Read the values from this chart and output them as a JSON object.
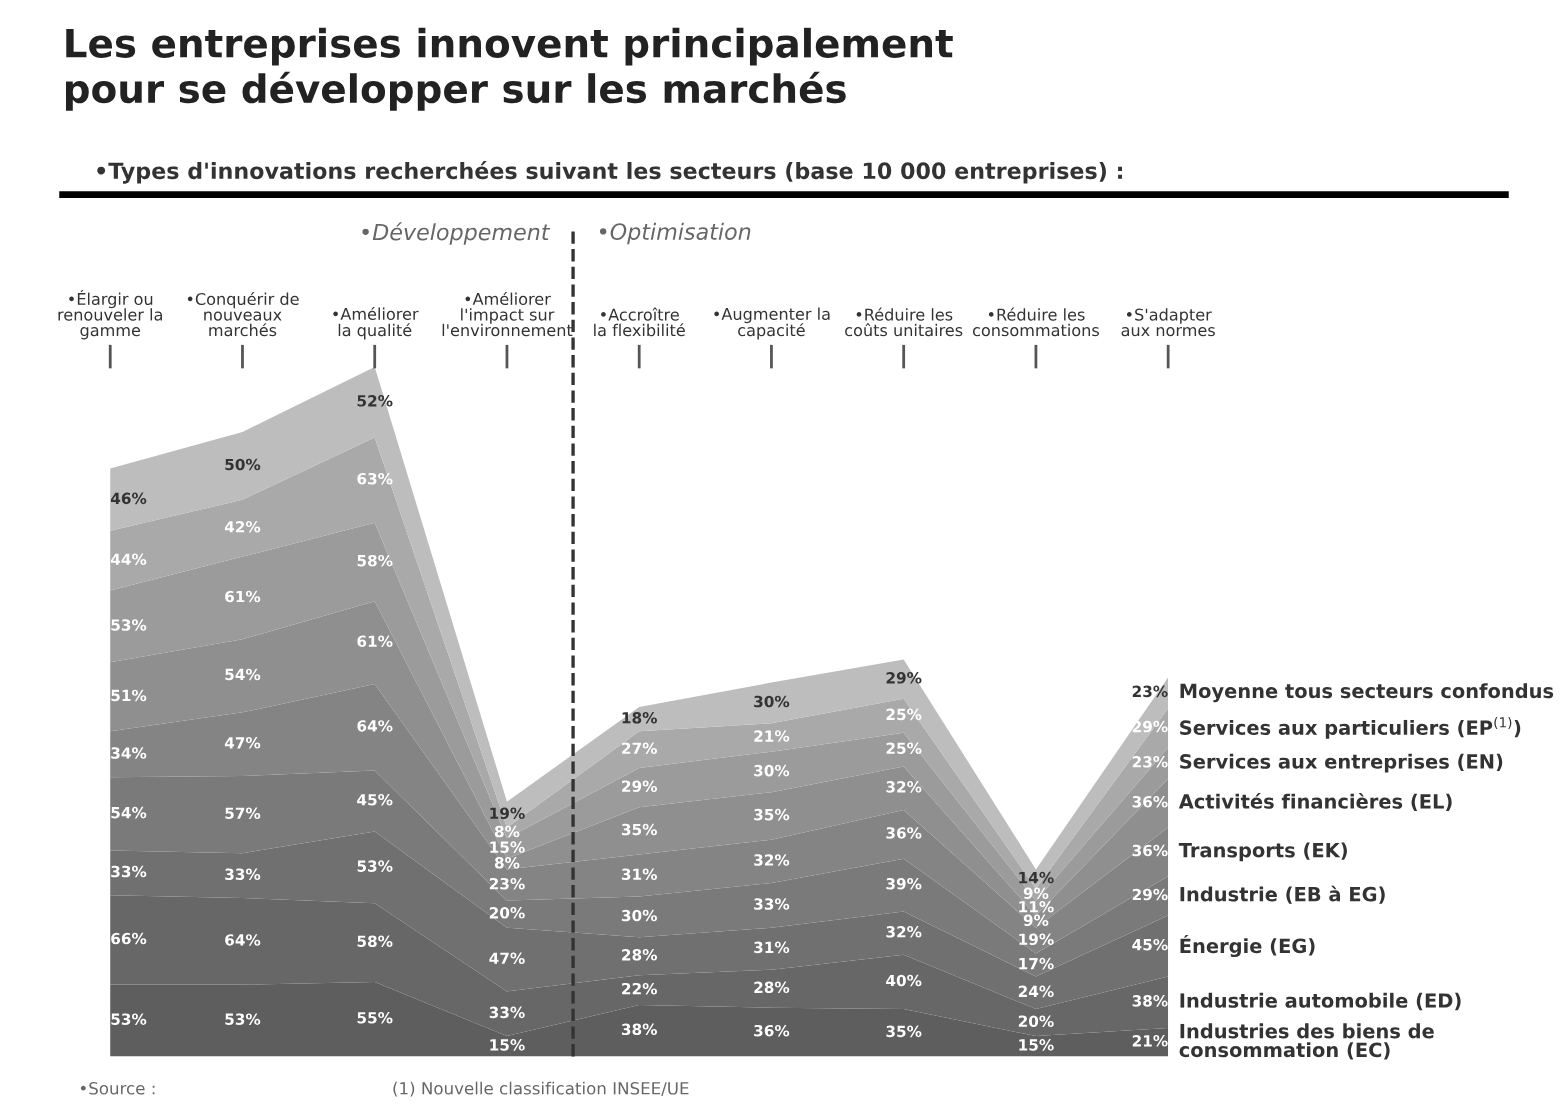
{
  "chart_data": {
    "type": "area",
    "stacked": true,
    "legend": false,
    "title": "Les entreprises innovent principalement\npour se développer sur les marchés",
    "subtitle": "•Types d'innovations recherchées suivant les secteurs (base 10 000 entreprises) :",
    "categories": [
      "•Élargir ou\nrenouveler la\ngamme",
      "•Conquérir de\nnouveaux\nmarchés",
      "•Améliorer\nla qualité",
      "•Améliorer\nl'impact sur\nl'environnement",
      "•Accroître\nla flexibilité",
      "•Augmenter la\ncapacité",
      "•Réduire les\ncoûts unitaires",
      "•Réduire les\nconsommations",
      "•S'adapter\naux normes"
    ],
    "series": [
      {
        "name": "Industries des biens de\nconsommation (EC)",
        "color": "#5e5e5e",
        "values": [
          53,
          53,
          55,
          15,
          38,
          36,
          35,
          15,
          21
        ],
        "value_labels": [
          "53%",
          "53%",
          "55%",
          "15%",
          "38%",
          "36%",
          "35%",
          "15%",
          "21%"
        ]
      },
      {
        "name": "Industrie automobile (ED)",
        "color": "#676767",
        "values": [
          66,
          64,
          58,
          33,
          22,
          28,
          40,
          20,
          38
        ],
        "value_labels": [
          "66%",
          "64%",
          "58%",
          "33%",
          "22%",
          "28%",
          "40%",
          "20%",
          "38%"
        ]
      },
      {
        "name": "Énergie (EG)",
        "color": "#707070",
        "values": [
          33,
          33,
          53,
          47,
          28,
          31,
          32,
          24,
          45
        ],
        "value_labels": [
          "33%",
          "33%",
          "53%",
          "47%",
          "28%",
          "31%",
          "32%",
          "24%",
          "45%"
        ]
      },
      {
        "name": "Industrie (EB à EG)",
        "color": "#7a7a7a",
        "values": [
          54,
          57,
          45,
          20,
          30,
          33,
          39,
          17,
          29
        ],
        "value_labels": [
          "54%",
          "57%",
          "45%",
          "20%",
          "30%",
          "33%",
          "39%",
          "17%",
          "29%"
        ]
      },
      {
        "name": "Transports (EK)",
        "color": "#848484",
        "values": [
          34,
          47,
          64,
          23,
          31,
          32,
          36,
          19,
          36
        ],
        "value_labels": [
          "34%",
          "47%",
          "64%",
          "23%",
          "31%",
          "32%",
          "36%",
          "19%",
          "36%"
        ]
      },
      {
        "name": "Activités financières (EL)",
        "color": "#8f8f8f",
        "values": [
          51,
          54,
          61,
          8,
          35,
          35,
          32,
          9,
          36
        ],
        "value_labels": [
          "51%",
          "54%",
          "61%",
          "8%",
          "35%",
          "35%",
          "32%",
          "9%",
          "36%"
        ]
      },
      {
        "name": "Services aux entreprises (EN)",
        "color": "#9b9b9b",
        "values": [
          53,
          61,
          58,
          15,
          29,
          30,
          25,
          11,
          23
        ],
        "value_labels": [
          "53%",
          "61%",
          "58%",
          "15%",
          "29%",
          "30%",
          "25%",
          "11%",
          "23%"
        ]
      },
      {
        "name": "Services aux particuliers (EP$^{(1)}$)",
        "color": "#a9a9a9",
        "values": [
          44,
          42,
          63,
          8,
          27,
          21,
          25,
          9,
          29
        ],
        "value_labels": [
          "44%",
          "42%",
          "63%",
          "8%",
          "27%",
          "21%",
          "25%",
          "9%",
          "29%"
        ]
      },
      {
        "name": "Moyenne tous secteurs confondus",
        "color": "#bdbdbd",
        "values": [
          46,
          50,
          52,
          19,
          18,
          30,
          29,
          14,
          23
        ],
        "value_labels": [
          "46%",
          "50%",
          "52%",
          "19%",
          "18%",
          "30%",
          "29%",
          "14%",
          "23%"
        ]
      }
    ],
    "annotations": [
      "•Développement",
      "•Optimisation",
      "•Source :",
      "(1) Nouvelle classification INSEE/UE"
    ]
  }
}
